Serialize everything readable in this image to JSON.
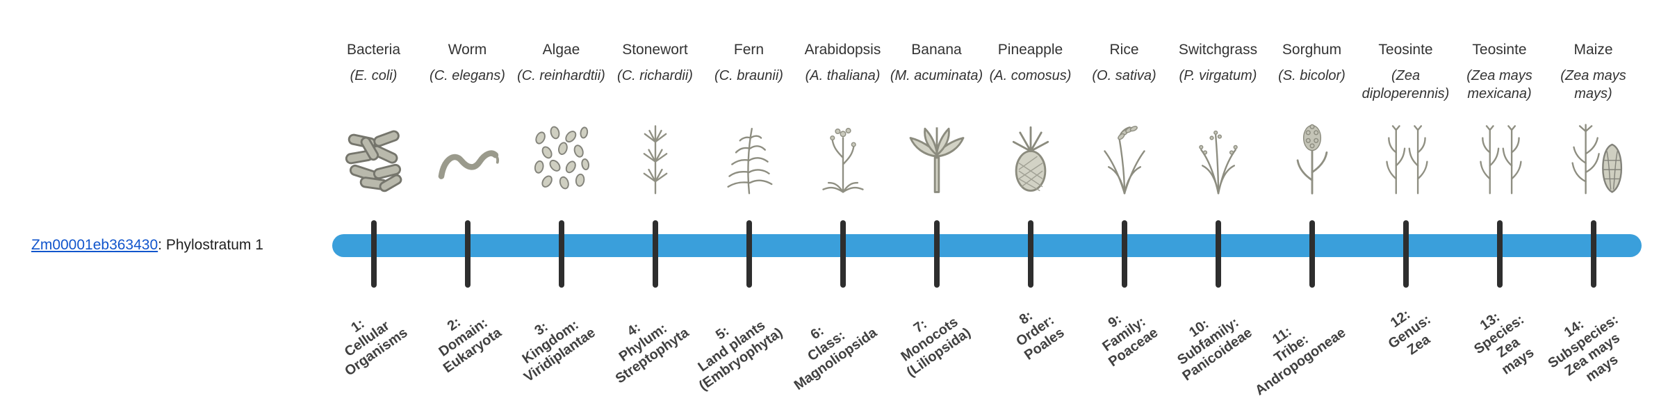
{
  "page": {
    "background": "#ffffff",
    "gene": {
      "id": "Zm00001eb363430",
      "suffix": ": Phylostratum 1"
    }
  },
  "timeline": {
    "bar_color": "#3A9FDB",
    "tick_color": "#2E2E2E",
    "link_color": "#1155CC",
    "text_color": "#333333",
    "label_color": "#404040"
  },
  "organisms": [
    {
      "name": "Bacteria",
      "scientific": "(E. coli)",
      "icon": "bacteria-icon",
      "stratum_label": "1:\nCellular\nOrganisms"
    },
    {
      "name": "Worm",
      "scientific": "(C. elegans)",
      "icon": "worm-icon",
      "stratum_label": "2:\nDomain:\nEukaryota"
    },
    {
      "name": "Algae",
      "scientific": "(C. reinhardtii)",
      "icon": "algae-icon",
      "stratum_label": "3:\nKingdom:\nViridiplantae"
    },
    {
      "name": "Stonewort",
      "scientific": "(C. richardii)",
      "icon": "stonewort-icon",
      "stratum_label": "4:\nPhylum:\nStreptophyta"
    },
    {
      "name": "Fern",
      "scientific": "(C. braunii)",
      "icon": "fern-icon",
      "stratum_label": "5:\nLand plants\n(Embryophyta)"
    },
    {
      "name": "Arabidopsis",
      "scientific": "(A. thaliana)",
      "icon": "arabidopsis-icon",
      "stratum_label": "6:\nClass:\nMagnoliopsida"
    },
    {
      "name": "Banana",
      "scientific": "(M. acuminata)",
      "icon": "banana-icon",
      "stratum_label": "7:\nMonocots\n(Liliopsida)"
    },
    {
      "name": "Pineapple",
      "scientific": "(A. comosus)",
      "icon": "pineapple-icon",
      "stratum_label": "8:\nOrder:\nPoales"
    },
    {
      "name": "Rice",
      "scientific": "(O. sativa)",
      "icon": "rice-icon",
      "stratum_label": "9:\nFamily:\nPoaceae"
    },
    {
      "name": "Switchgrass",
      "scientific": "(P. virgatum)",
      "icon": "switchgrass-icon",
      "stratum_label": "10:\nSubfamily:\nPanicoideae"
    },
    {
      "name": "Sorghum",
      "scientific": "(S. bicolor)",
      "icon": "sorghum-icon",
      "stratum_label": "11:\nTribe:\nAndropogoneae"
    },
    {
      "name": "Teosinte",
      "scientific": "(Zea diploperennis)",
      "icon": "teosinte-icon",
      "stratum_label": "12:\nGenus:\nZea"
    },
    {
      "name": "Teosinte",
      "scientific": "(Zea mays mexicana)",
      "icon": "teosinte-icon",
      "stratum_label": "13:\nSpecies:\nZea\nmays"
    },
    {
      "name": "Maize",
      "scientific": "(Zea mays mays)",
      "icon": "maize-icon",
      "stratum_label": "14:\nSubspecies:\nZea mays\nmays"
    }
  ]
}
